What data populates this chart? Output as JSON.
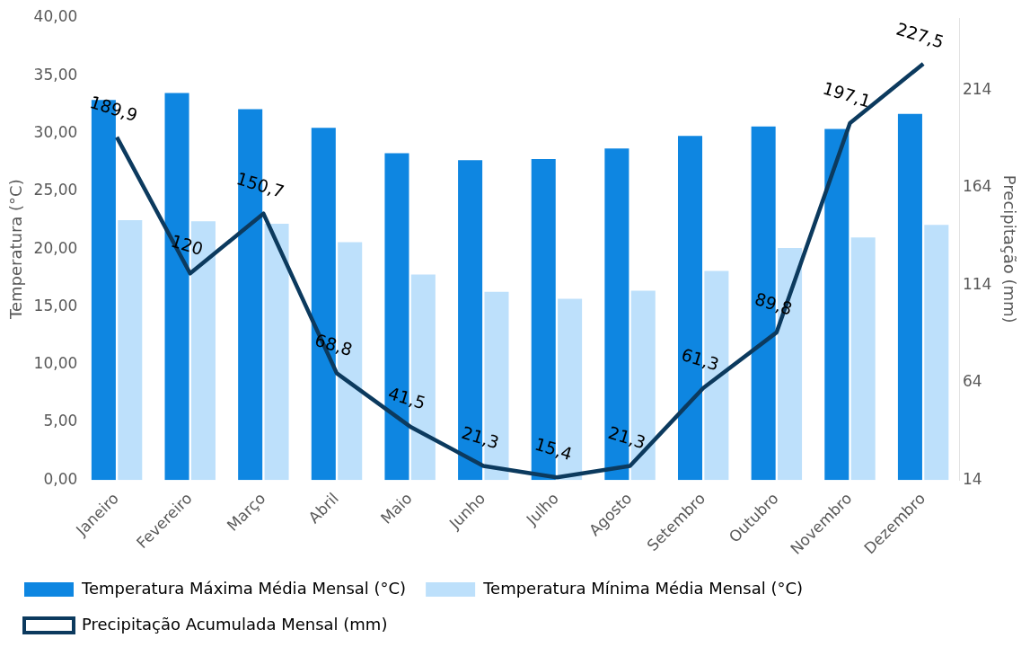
{
  "chart_data": {
    "type": "bar",
    "categories": [
      "Janeiro",
      "Fevereiro",
      "Março",
      "Abril",
      "Maio",
      "Junho",
      "Julho",
      "Agosto",
      "Setembro",
      "Outubro",
      "Novembro",
      "Dezembro"
    ],
    "ylabel": "Temperatura (°C)",
    "y2label": "Precipitação (mm)",
    "ylim": [
      0,
      40
    ],
    "yticks": [
      {
        "value": 0,
        "label": "0,00"
      },
      {
        "value": 5,
        "label": "5,00"
      },
      {
        "value": 10,
        "label": "10,00"
      },
      {
        "value": 15,
        "label": "15,00"
      },
      {
        "value": 20,
        "label": "20,00"
      },
      {
        "value": 25,
        "label": "25,00"
      },
      {
        "value": 30,
        "label": "30,00"
      },
      {
        "value": 35,
        "label": "35,00"
      },
      {
        "value": 40,
        "label": "40,00"
      }
    ],
    "y2lim": [
      14,
      251
    ],
    "y2ticks": [
      14,
      64,
      114,
      164,
      214
    ],
    "grid": false,
    "legend": "bottom",
    "series": [
      {
        "name": "Temperatura Máxima Média Mensal (°C)",
        "color": "#0e86e1",
        "values": [
          32.9,
          33.5,
          32.1,
          30.5,
          28.3,
          27.7,
          27.8,
          28.7,
          29.8,
          30.6,
          30.4,
          31.7
        ]
      },
      {
        "name": "Temperatura Mínima Média Mensal (°C)",
        "color": "#bde0fb",
        "values": [
          22.5,
          22.4,
          22.2,
          20.6,
          17.8,
          16.3,
          15.7,
          16.4,
          18.1,
          20.1,
          21.0,
          22.1
        ]
      },
      {
        "name": "Precipitação Acumulada Mensal (mm)",
        "type": "line",
        "axis": "y2",
        "color": "#0c3a5e",
        "marker": "none",
        "values": [
          189.9,
          120,
          150.7,
          68.8,
          41.5,
          21.3,
          15.4,
          21.3,
          61.3,
          89.8,
          197.1,
          227.5
        ],
        "value_labels": [
          "189,9",
          "120",
          "150,7",
          "68,8",
          "41,5",
          "21,3",
          "15,4",
          "21,3",
          "61,3",
          "89,8",
          "197,1",
          "227,5"
        ]
      }
    ]
  }
}
